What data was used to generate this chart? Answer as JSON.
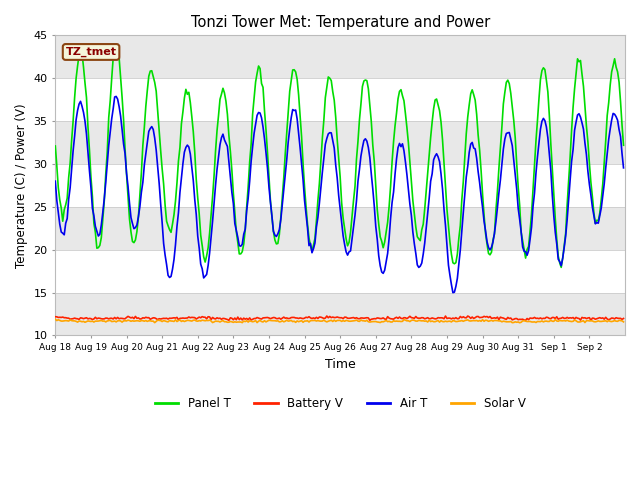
{
  "title": "Tonzi Tower Met: Temperature and Power",
  "xlabel": "Time",
  "ylabel": "Temperature (C) / Power (V)",
  "ylim": [
    10,
    45
  ],
  "annotation_text": "TZ_tmet",
  "annotation_color": "#8B0000",
  "annotation_bg": "#F5F5DC",
  "annotation_border": "#8B4513",
  "fig_bg": "#FFFFFF",
  "plot_bg": "#FFFFFF",
  "band_color_light": "#EBEBEB",
  "band_color_white": "#FFFFFF",
  "series": {
    "panel_T": {
      "label": "Panel T",
      "color": "#00DD00",
      "linewidth": 1.2
    },
    "battery_V": {
      "label": "Battery V",
      "color": "#FF2200",
      "linewidth": 1.2
    },
    "air_T": {
      "label": "Air T",
      "color": "#0000EE",
      "linewidth": 1.2
    },
    "solar_V": {
      "label": "Solar V",
      "color": "#FFA500",
      "linewidth": 1.2
    }
  },
  "tick_labels": [
    "Aug 18",
    "Aug 19",
    "Aug 20",
    "Aug 21",
    "Aug 22",
    "Aug 23",
    "Aug 24",
    "Aug 25",
    "Aug 26",
    "Aug 27",
    "Aug 28",
    "Aug 29",
    "Aug 30",
    "Aug 31",
    "Sep 1",
    "Sep 2"
  ],
  "yticks": [
    10,
    15,
    20,
    25,
    30,
    35,
    40,
    45
  ],
  "bands": [
    {
      "ymin": 10,
      "ymax": 15,
      "color": "#E8E8E8"
    },
    {
      "ymin": 15,
      "ymax": 20,
      "color": "#FFFFFF"
    },
    {
      "ymin": 20,
      "ymax": 25,
      "color": "#E8E8E8"
    },
    {
      "ymin": 25,
      "ymax": 30,
      "color": "#FFFFFF"
    },
    {
      "ymin": 30,
      "ymax": 35,
      "color": "#E8E8E8"
    },
    {
      "ymin": 35,
      "ymax": 40,
      "color": "#FFFFFF"
    },
    {
      "ymin": 40,
      "ymax": 45,
      "color": "#E8E8E8"
    }
  ],
  "n_days": 16,
  "panel_T_peaks": [
    43,
    43,
    44,
    40,
    38,
    39,
    42,
    41,
    40,
    40,
    38,
    37,
    39,
    40,
    42,
    42
  ],
  "panel_T_troughs": [
    25,
    20,
    20,
    23,
    19,
    19,
    21,
    20,
    21,
    20,
    22,
    18,
    19,
    20,
    17,
    23
  ],
  "air_T_peaks": [
    38,
    37,
    38,
    33,
    32,
    34,
    37,
    36,
    33,
    33,
    32,
    31,
    33,
    34,
    36,
    36
  ],
  "air_T_troughs": [
    22,
    21,
    24,
    17,
    16,
    20,
    22,
    20,
    20,
    17,
    19,
    14,
    20,
    20,
    17,
    23
  ],
  "battery_V_vals": [
    12.1,
    11.95,
    12.05,
    12.0,
    12.1,
    11.9,
    12.05,
    12.0,
    12.1,
    11.95,
    12.05,
    12.0,
    12.1,
    11.9,
    12.05,
    12.0
  ],
  "solar_V_vals": [
    11.75,
    11.6,
    11.7,
    11.65,
    11.75,
    11.55,
    11.7,
    11.65,
    11.75,
    11.6,
    11.7,
    11.65,
    11.75,
    11.55,
    11.7,
    11.65
  ]
}
